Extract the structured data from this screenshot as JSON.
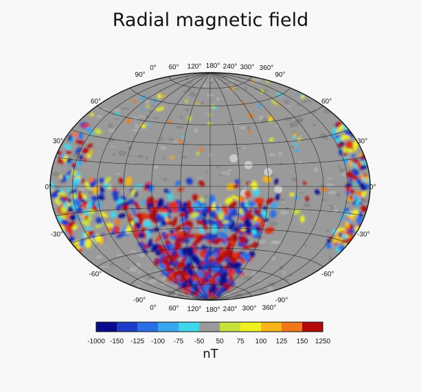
{
  "title": "Radial magnetic field",
  "map": {
    "projection": "hammer",
    "top_lon_labels": [
      "0°",
      "60°",
      "120°",
      "180°",
      "240°",
      "300°",
      "360°"
    ],
    "bottom_lon_labels": [
      "0°",
      "60°",
      "120°",
      "180°",
      "240°",
      "300°",
      "360°"
    ],
    "left_lat_labels": [
      "90°",
      "60°",
      "30°",
      "0°",
      "-30°",
      "-60°",
      "-90°"
    ],
    "right_lat_labels": [
      "90°",
      "60°",
      "30°",
      "0°",
      "-30°",
      "-60°",
      "-90°"
    ],
    "background_color": "#9a9a9a",
    "grid_color": "#222222"
  },
  "colorbar": {
    "labels": [
      "-1000",
      "-150",
      "-125",
      "-100",
      "-75",
      "-50",
      "50",
      "75",
      "100",
      "125",
      "150",
      "1250"
    ],
    "colors": [
      "#0a0a8c",
      "#1e3cc8",
      "#2a6fe6",
      "#3aa6ee",
      "#3fd6ea",
      "#9a9a9a",
      "#c8e03c",
      "#f0f020",
      "#f7b418",
      "#f07818",
      "#e03018",
      "#b40a0a"
    ],
    "unit": "nT"
  }
}
